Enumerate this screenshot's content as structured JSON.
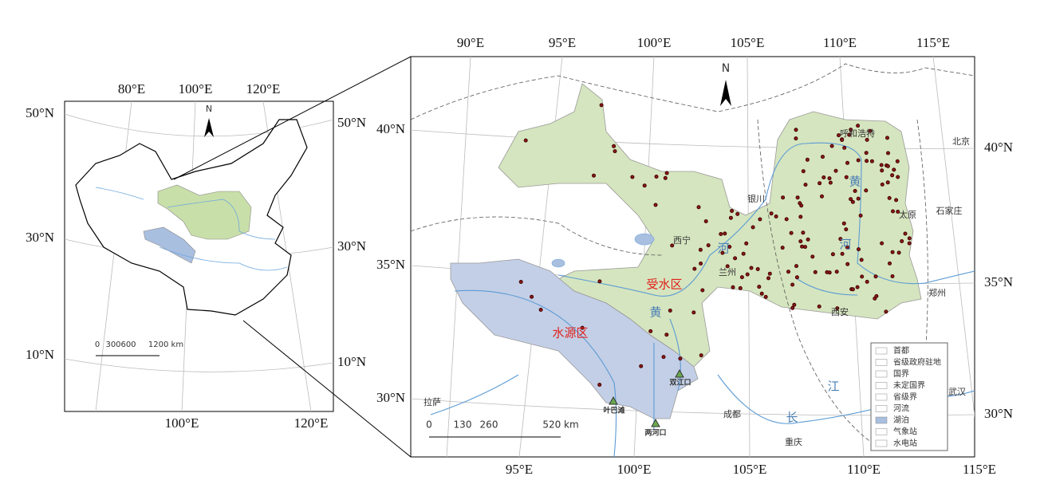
{
  "inset_map": {
    "lon_labels_top": [
      "80°E",
      "100°E",
      "120°E"
    ],
    "lat_labels_left": [
      "50°N",
      "30°N",
      "10°N"
    ],
    "lat_labels_right": [
      "50°N",
      "30°N",
      "10°N"
    ],
    "lon_labels_bottom": [
      "100°E",
      "120°E"
    ],
    "north": "N",
    "scale_labels": [
      "0",
      "300",
      "600",
      "1200 km"
    ]
  },
  "main_map": {
    "lon_labels_top": [
      "90°E",
      "95°E",
      "100°E",
      "105°E",
      "110°E",
      "115°E"
    ],
    "lon_labels_bottom": [
      "95°E",
      "100°E",
      "105°E",
      "110°E",
      "115°E"
    ],
    "lat_labels_left": [
      "40°N",
      "35°N",
      "30°N"
    ],
    "lat_labels_right": [
      "40°N",
      "35°N",
      "30°N"
    ],
    "north": "N",
    "places": [
      "北京",
      "石家庄",
      "太原",
      "郑州",
      "武汉",
      "西安",
      "兰州",
      "西宁",
      "银川",
      "呼和浩特",
      "成都",
      "重庆",
      "拉萨"
    ],
    "regions": [
      "受水区",
      "水源区"
    ],
    "river_labels": [
      "黄",
      "河",
      "河",
      "黄",
      "长",
      "江"
    ],
    "stations": [
      "叶巴滩",
      "双江口",
      "两河口"
    ],
    "legend": [
      "首都",
      "省级政府驻地",
      "国界",
      "未定国界",
      "省级界",
      "河流",
      "湖泊",
      "气象站",
      "水电站"
    ],
    "scale_labels": [
      "0",
      "130",
      "260",
      "520 km"
    ]
  }
}
